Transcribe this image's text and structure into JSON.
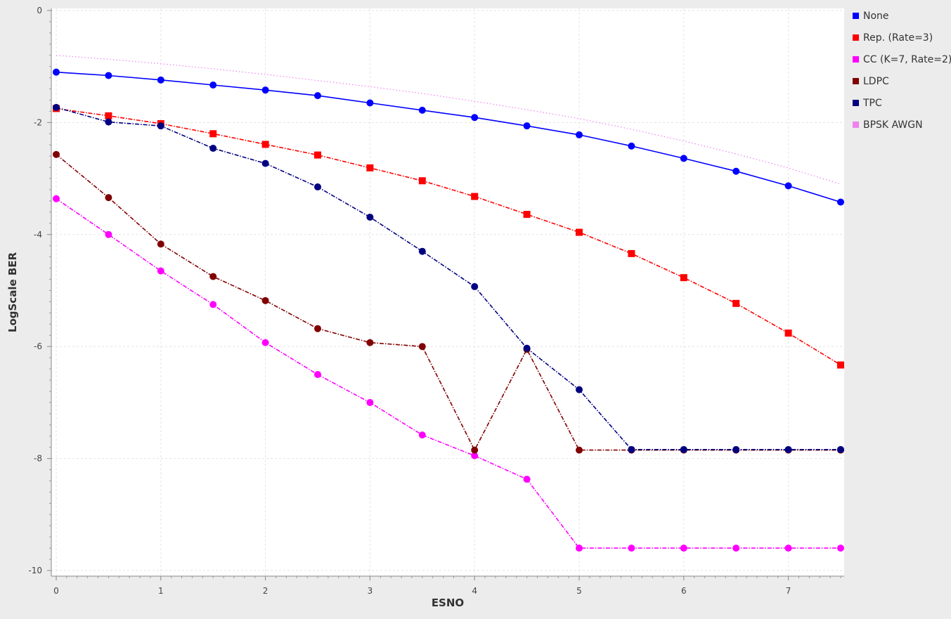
{
  "chart_data": {
    "type": "line",
    "xlabel": "ESNO",
    "ylabel": "LogScale BER",
    "xlim": [
      0,
      7.5
    ],
    "ylim": [
      -10,
      0
    ],
    "x_ticks": [
      "0",
      "1",
      "2",
      "3",
      "4",
      "5",
      "6",
      "7"
    ],
    "y_ticks": [
      "0",
      "-2",
      "-4",
      "-6",
      "-8",
      "-10"
    ],
    "grid": true,
    "legend_position": "right",
    "x": [
      0,
      0.5,
      1,
      1.5,
      2,
      2.5,
      3,
      3.5,
      4,
      4.5,
      5,
      5.5,
      6,
      6.5,
      7,
      7.5
    ],
    "series": [
      {
        "name": "None",
        "color": "#0000ff",
        "marker": "circle",
        "line": "solid",
        "values": [
          -1.1,
          -1.16,
          -1.24,
          -1.33,
          -1.42,
          -1.52,
          -1.65,
          -1.78,
          -1.91,
          -2.06,
          -2.22,
          -2.42,
          -2.64,
          -2.87,
          -3.13,
          -3.42
        ]
      },
      {
        "name": "Rep. (Rate=3)",
        "color": "#ff0000",
        "marker": "square",
        "line": "dashdot",
        "values": [
          -1.75,
          -1.88,
          -2.02,
          -2.2,
          -2.39,
          -2.58,
          -2.81,
          -3.04,
          -3.32,
          -3.64,
          -3.96,
          -4.34,
          -4.77,
          -5.23,
          -5.76,
          -6.33
        ]
      },
      {
        "name": "CC (K=7, Rate=2)",
        "color": "#ff00ff",
        "marker": "circle",
        "line": "dashdot",
        "values": [
          -3.36,
          -4.0,
          -4.65,
          -5.25,
          -5.93,
          -6.5,
          -7.0,
          -7.58,
          -7.95,
          -8.37,
          -9.6,
          -9.6,
          -9.6,
          -9.6,
          -9.6,
          -9.6
        ]
      },
      {
        "name": "LDPC",
        "color": "#800000",
        "marker": "circle",
        "line": "dashdot",
        "values": [
          -2.57,
          -3.34,
          -4.17,
          -4.75,
          -5.18,
          -5.68,
          -5.93,
          -6.0,
          -7.85,
          -6.05,
          -7.85,
          -7.85,
          -7.85,
          -7.85,
          -7.85,
          -7.85
        ]
      },
      {
        "name": "TPC",
        "color": "#000080",
        "marker": "circle",
        "line": "dashdot",
        "values": [
          -1.73,
          -1.99,
          -2.06,
          -2.46,
          -2.73,
          -3.15,
          -3.69,
          -4.3,
          -4.93,
          -6.03,
          -6.77,
          -7.84,
          -7.84,
          -7.84,
          -7.84,
          -7.84
        ]
      },
      {
        "name": "BPSK AWGN",
        "color": "#ee82ee",
        "marker": "none",
        "line": "dotted",
        "values": [
          -0.8,
          -0.87,
          -0.95,
          -1.04,
          -1.14,
          -1.25,
          -1.36,
          -1.48,
          -1.62,
          -1.77,
          -1.93,
          -2.12,
          -2.33,
          -2.56,
          -2.81,
          -3.1
        ]
      }
    ]
  }
}
